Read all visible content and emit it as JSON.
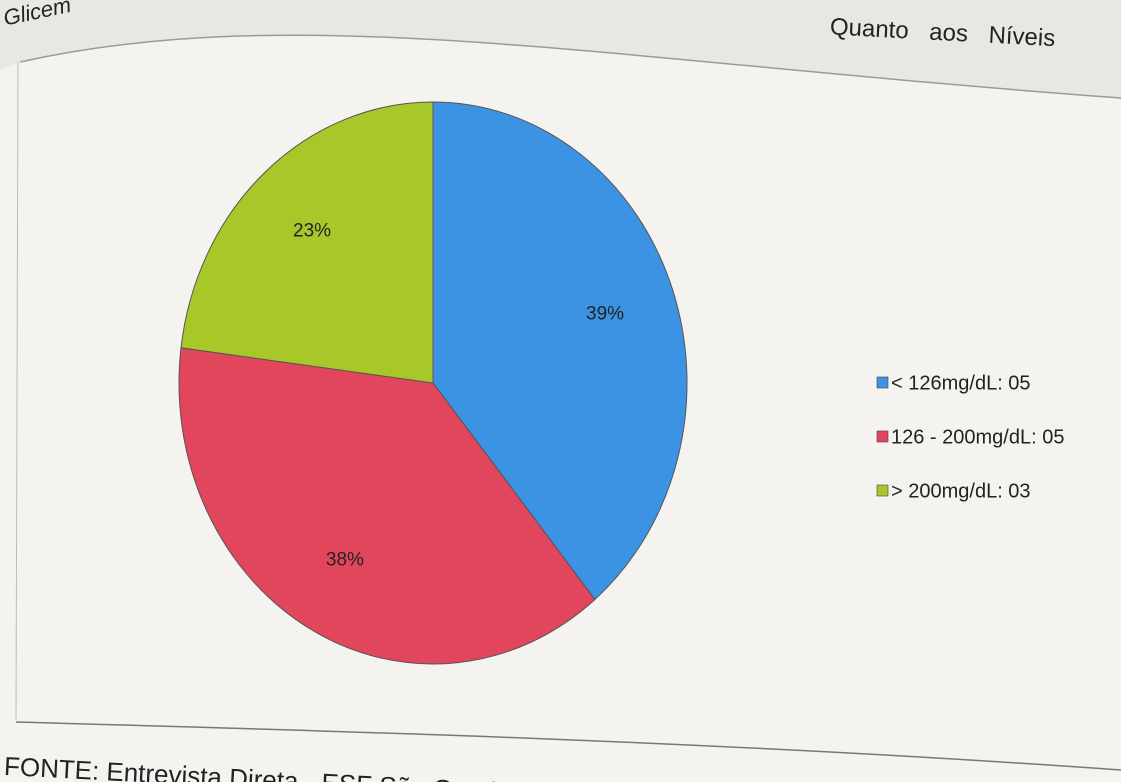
{
  "chart_data": {
    "type": "pie",
    "annotations": [
      "Glicem",
      "Quanto aos Níveis"
    ],
    "source": "FONTE: Entrevista Direta - ESF São Geraldo/Icó-Ceará",
    "categories": [
      "< 126mg/dL: 05",
      "126 - 200mg/dL: 05",
      "> 200mg/dL: 03"
    ],
    "values": [
      39,
      38,
      23
    ],
    "value_labels": [
      "39%",
      "38%",
      "23%"
    ],
    "colors": [
      "#3d93e3",
      "#e2465c",
      "#a8c82a"
    ],
    "legend": "right"
  }
}
